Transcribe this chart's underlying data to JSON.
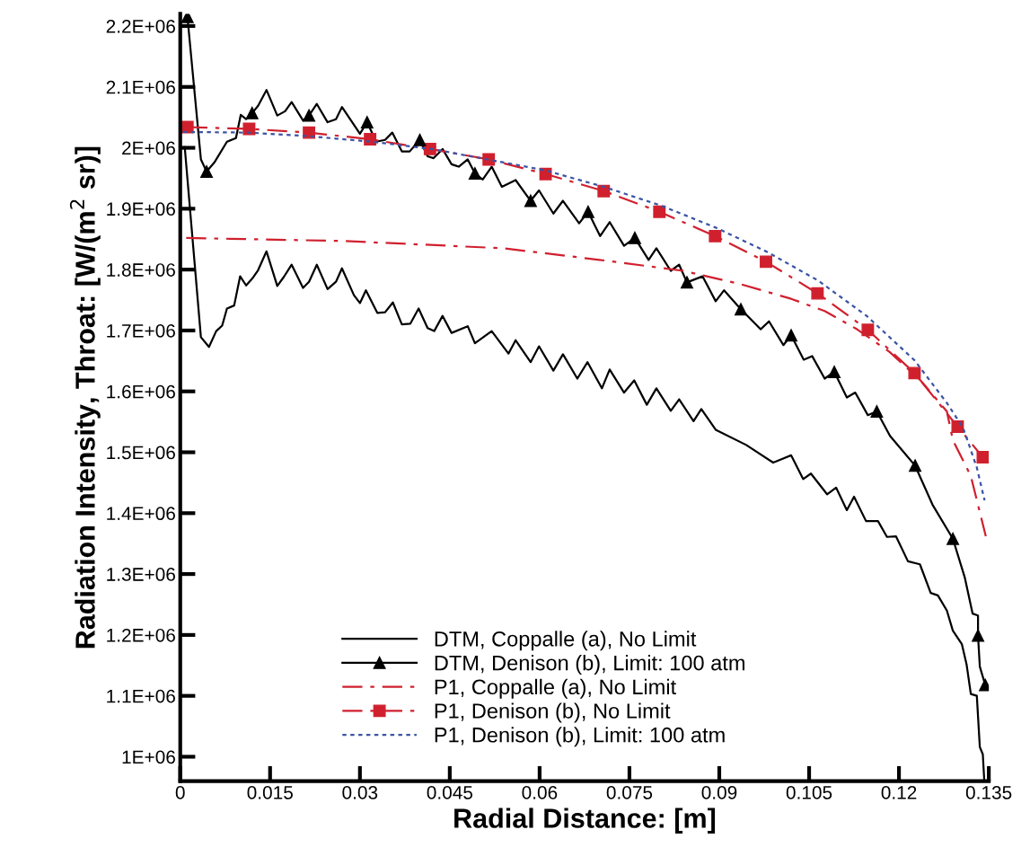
{
  "chart_data": {
    "type": "line",
    "xlabel": "Radial Distance: [m]",
    "ylabel": "Radiation Intensity, Throat: [W/(m$^{2}$ sr)]",
    "xlim": [
      0,
      0.135
    ],
    "xticks": [
      0,
      0.015,
      0.03,
      0.045,
      0.06,
      0.075,
      0.09,
      0.105,
      0.12,
      0.135
    ],
    "ylim": [
      960000,
      2220000
    ],
    "yticks": [
      {
        "value": 1000000,
        "label": "1E+06"
      },
      {
        "value": 1100000,
        "label": "1.1E+06"
      },
      {
        "value": 1200000,
        "label": "1.2E+06"
      },
      {
        "value": 1300000,
        "label": "1.3E+06"
      },
      {
        "value": 1400000,
        "label": "1.4E+06"
      },
      {
        "value": 1500000,
        "label": "1.5E+06"
      },
      {
        "value": 1600000,
        "label": "1.6E+06"
      },
      {
        "value": 1700000,
        "label": "1.7E+06"
      },
      {
        "value": 1800000,
        "label": "1.8E+06"
      },
      {
        "value": 1900000,
        "label": "1.9E+06"
      },
      {
        "value": 2000000,
        "label": "2E+06"
      },
      {
        "value": 2100000,
        "label": "2.1E+06"
      },
      {
        "value": 2200000,
        "label": "2.2E+06"
      }
    ],
    "legend": "bottom",
    "series": [
      {
        "name": "DTM, Coppalle (a), No Limit",
        "color": "#000000",
        "line_style": "solid",
        "x": [
          0.00075,
          0.00345,
          0.0048,
          0.006,
          0.007,
          0.0078,
          0.009,
          0.01,
          0.011,
          0.012,
          0.013,
          0.0144,
          0.0162,
          0.0173,
          0.0186,
          0.0205,
          0.0215,
          0.0228,
          0.0246,
          0.026,
          0.027,
          0.029,
          0.03,
          0.031,
          0.0329,
          0.0342,
          0.0355,
          0.037,
          0.0384,
          0.0398,
          0.0413,
          0.0424,
          0.0438,
          0.0453,
          0.048,
          0.0492,
          0.052,
          0.0548,
          0.056,
          0.0585,
          0.0599,
          0.0623,
          0.0639,
          0.0663,
          0.068,
          0.0704,
          0.0717,
          0.0741,
          0.0758,
          0.0779,
          0.0795,
          0.0819,
          0.0833,
          0.0857,
          0.087,
          0.0894,
          0.0945,
          0.099,
          0.102,
          0.104,
          0.1053,
          0.108,
          0.1095,
          0.1113,
          0.1125,
          0.1145,
          0.1165,
          0.118,
          0.1195,
          0.1215,
          0.1235,
          0.1253,
          0.1265,
          0.128,
          0.129,
          0.1305,
          0.1313,
          0.132,
          0.133,
          0.1335,
          0.134,
          0.13425
        ],
        "values": [
          2001000,
          1689000,
          1673000,
          1699000,
          1708000,
          1736000,
          1741000,
          1789000,
          1774000,
          1785000,
          1799000,
          1830000,
          1773000,
          1788000,
          1808000,
          1770000,
          1780000,
          1808000,
          1768000,
          1780000,
          1802000,
          1758000,
          1745000,
          1766000,
          1729000,
          1730000,
          1746000,
          1710000,
          1711000,
          1736000,
          1704000,
          1699000,
          1724000,
          1696000,
          1707000,
          1679000,
          1699000,
          1662000,
          1684000,
          1648000,
          1674000,
          1634000,
          1661000,
          1621000,
          1648000,
          1605000,
          1636000,
          1598000,
          1618000,
          1578000,
          1605000,
          1568000,
          1587000,
          1551000,
          1571000,
          1537000,
          1512000,
          1483000,
          1495000,
          1456000,
          1465000,
          1431000,
          1442000,
          1405000,
          1427000,
          1387000,
          1387000,
          1361000,
          1362000,
          1321000,
          1316000,
          1269000,
          1265000,
          1240000,
          1207000,
          1185000,
          1151000,
          1103000,
          1100000,
          1016000,
          1004000,
          960000
        ]
      },
      {
        "name": "DTM, Denison (b), Limit: 100 atm",
        "color": "#000000",
        "line_style": "solid",
        "x": [
          0.0012,
          0.00345,
          0.0044,
          0.0057,
          0.0078,
          0.0093,
          0.0101,
          0.011,
          0.012,
          0.013,
          0.0144,
          0.0162,
          0.0175,
          0.0186,
          0.0205,
          0.0215,
          0.0228,
          0.0246,
          0.026,
          0.027,
          0.03,
          0.0312,
          0.0327,
          0.0342,
          0.0354,
          0.037,
          0.0383,
          0.04,
          0.0413,
          0.0423,
          0.0438,
          0.0453,
          0.0465,
          0.048,
          0.0492,
          0.0505,
          0.052,
          0.0537,
          0.056,
          0.0585,
          0.0599,
          0.0623,
          0.0639,
          0.0666,
          0.0681,
          0.0701,
          0.0717,
          0.0741,
          0.0759,
          0.0782,
          0.0795,
          0.0819,
          0.0833,
          0.0846,
          0.0872,
          0.0894,
          0.0908,
          0.0936,
          0.0969,
          0.0983,
          0.1007,
          0.102,
          0.1041,
          0.1055,
          0.1076,
          0.1092,
          0.1113,
          0.1127,
          0.1148,
          0.1163,
          0.1185,
          0.1227,
          0.1256,
          0.129,
          0.131,
          0.1323,
          0.1332,
          0.1332,
          0.1335,
          0.1344
        ],
        "values": [
          2215000,
          1981000,
          1961000,
          1976000,
          2010000,
          2016000,
          2054000,
          2047000,
          2057000,
          2069000,
          2095000,
          2053000,
          2060000,
          2075000,
          2045000,
          2053000,
          2072000,
          2042000,
          2047000,
          2067000,
          2023000,
          2042000,
          2010000,
          2013000,
          2025000,
          1994000,
          1994000,
          2013000,
          1986000,
          1983000,
          1998000,
          1973000,
          1969000,
          1981000,
          1958000,
          1948000,
          1969000,
          1936000,
          1947000,
          1913000,
          1930000,
          1892000,
          1913000,
          1876000,
          1895000,
          1855000,
          1878000,
          1839000,
          1852000,
          1816000,
          1835000,
          1798000,
          1808000,
          1779000,
          1789000,
          1748000,
          1766000,
          1735000,
          1702000,
          1715000,
          1676000,
          1692000,
          1652000,
          1658000,
          1621000,
          1632000,
          1590000,
          1598000,
          1561000,
          1567000,
          1527000,
          1478000,
          1414000,
          1358000,
          1294000,
          1235000,
          1232000,
          1199000,
          1148000,
          1118000
        ]
      },
      {
        "type": "scatter",
        "color": "#000000",
        "marker": "triangle",
        "x": [
          0.0012,
          0.0044,
          0.012,
          0.0215,
          0.0312,
          0.04,
          0.0492,
          0.0585,
          0.0681,
          0.0759,
          0.0846,
          0.0936,
          0.102,
          0.1092,
          0.1163,
          0.1227,
          0.129,
          0.1332,
          0.1344
        ],
        "values": [
          2215000,
          1961000,
          2057000,
          2053000,
          2042000,
          2013000,
          1958000,
          1913000,
          1895000,
          1852000,
          1779000,
          1735000,
          1692000,
          1632000,
          1567000,
          1478000,
          1358000,
          1199000,
          1118000
        ]
      },
      {
        "name": "P1, Coppalle (a), No Limit",
        "color": "#d0202e",
        "line_style": "dashdot",
        "x": [
          0.001,
          0.027,
          0.054,
          0.07,
          0.084,
          0.0936,
          0.102,
          0.1076,
          0.113,
          0.1184,
          0.1236,
          0.128,
          0.129,
          0.132,
          0.1345
        ],
        "values": [
          1852000,
          1847000,
          1835000,
          1816000,
          1798000,
          1776000,
          1752000,
          1732000,
          1702000,
          1665000,
          1618000,
          1567000,
          1520000,
          1461000,
          1362000
        ]
      },
      {
        "name": "P1, Denison (b), No Limit",
        "color": "#d0202e",
        "line_style": "dashdot",
        "marker": "square",
        "x": [
          0.0012,
          0.0115,
          0.0215,
          0.0317,
          0.0417,
          0.0515,
          0.061,
          0.0707,
          0.08,
          0.0893,
          0.0978,
          0.1064,
          0.1148,
          0.1226,
          0.1298,
          0.134
        ],
        "values": [
          2034000,
          2031000,
          2025000,
          2014000,
          1998000,
          1981000,
          1957000,
          1929000,
          1895000,
          1855000,
          1813000,
          1761000,
          1701000,
          1630000,
          1542000,
          1492000
        ]
      },
      {
        "name": "P1, Denison (b), Limit: 100 atm",
        "color": "#3a53a4",
        "line_style": "dotted",
        "x": [
          0.00045,
          0.0115,
          0.0215,
          0.032,
          0.042,
          0.054,
          0.0609,
          0.0707,
          0.0803,
          0.0894,
          0.098,
          0.1065,
          0.1146,
          0.1226,
          0.128,
          0.1307,
          0.1316,
          0.133,
          0.1343
        ],
        "values": [
          2026000,
          2025000,
          2019000,
          2010000,
          1998000,
          1976000,
          1963000,
          1936000,
          1905000,
          1869000,
          1829000,
          1782000,
          1724000,
          1651000,
          1581000,
          1540000,
          1515000,
          1475000,
          1421000
        ]
      }
    ]
  }
}
